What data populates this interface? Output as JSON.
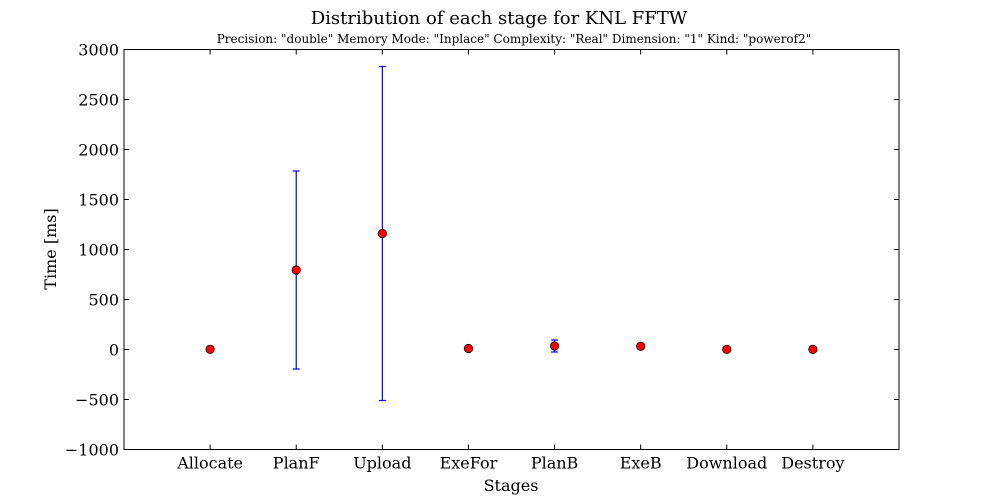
{
  "chart_data": {
    "type": "scatter",
    "title": "Distribution of each stage for KNL FFTW",
    "subtitle": "Precision: \"double\" Memory Mode: \"Inplace\" Complexity: \"Real\" Dimension: \"1\" Kind: \"powerof2\"",
    "xlabel": "Stages",
    "ylabel": "Time [ms]",
    "categories": [
      "Allocate",
      "PlanF",
      "Upload",
      "ExeFor",
      "PlanB",
      "ExeB",
      "Download",
      "Destroy"
    ],
    "values": [
      2,
      795,
      1160,
      10,
      35,
      32,
      1,
      1
    ],
    "errors": [
      0,
      990,
      1670,
      4,
      60,
      25,
      0,
      0
    ],
    "ylim": [
      -1000,
      3000
    ],
    "yticks": [
      -1000,
      -500,
      0,
      500,
      1000,
      1500,
      2000,
      2500,
      3000
    ],
    "ytick_labels": [
      "−1000",
      "−500",
      "0",
      "500",
      "1000",
      "1500",
      "2000",
      "2500",
      "3000"
    ],
    "xlim_categories": [
      -1,
      8
    ],
    "grid": false,
    "marker_color": "#ff0000",
    "errorbar_color": "#0000ff"
  }
}
